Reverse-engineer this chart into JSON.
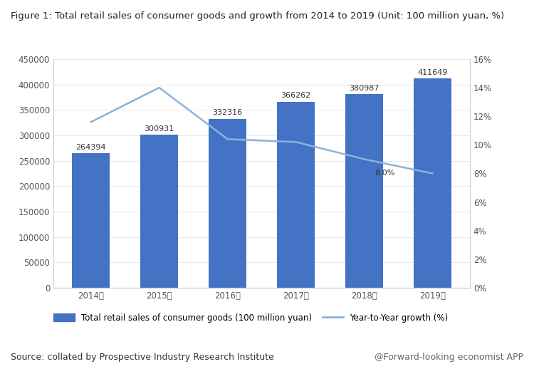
{
  "title": "Figure 1: Total retail sales of consumer goods and growth from 2014 to 2019 (Unit: 100 million yuan, %)",
  "years": [
    "2014年",
    "2015年",
    "2016年",
    "2017年",
    "2018年",
    "2019年"
  ],
  "sales": [
    264394,
    300931,
    332316,
    366262,
    380987,
    411649
  ],
  "growth": [
    11.6,
    14.0,
    10.4,
    10.2,
    9.0,
    8.0
  ],
  "bar_color": "#4472C4",
  "line_color": "#8AB4D8",
  "bar_label_color": "#333333",
  "left_ylim": [
    0,
    450000
  ],
  "left_yticks": [
    0,
    50000,
    100000,
    150000,
    200000,
    250000,
    300000,
    350000,
    400000,
    450000
  ],
  "right_ylim": [
    0,
    16
  ],
  "right_yticks": [
    0,
    2,
    4,
    6,
    8,
    10,
    12,
    14,
    16
  ],
  "right_yticklabels": [
    "0%",
    "2%",
    "4%",
    "6%",
    "8%",
    "10%",
    "12%",
    "14%",
    "16%"
  ],
  "legend_bar_label": "Total retail sales of consumer goods (100 million yuan)",
  "legend_line_label": "Year-to-Year growth (%)",
  "source_text": "Source: collated by Prospective Industry Research Institute",
  "watermark_text": "@Forward-looking economist APP",
  "growth_annotation": "8.0%",
  "background_color": "#ffffff",
  "title_fontsize": 9.5,
  "tick_fontsize": 8.5,
  "bar_label_fontsize": 8,
  "legend_fontsize": 8.5,
  "source_fontsize": 9
}
